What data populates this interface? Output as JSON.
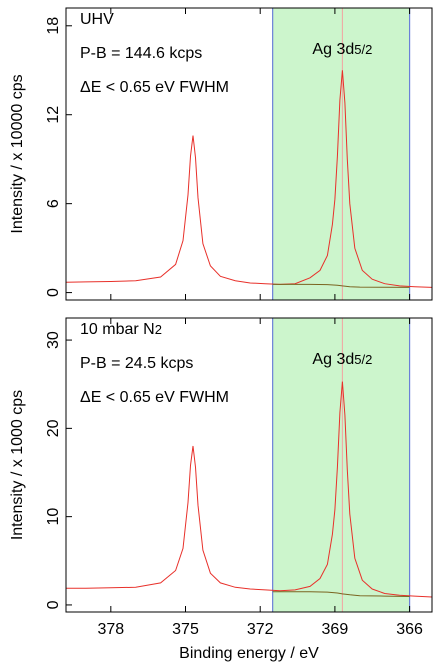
{
  "chart_data": [
    {
      "type": "line",
      "ylabel": "Intensity / x 10000 cps",
      "label_lines": [
        [
          "UHV"
        ],
        [
          "P-B = 144.6 kcps"
        ],
        [
          "ΔE < 0.65 eV FWHM"
        ]
      ],
      "peak_label": [
        "Ag 3d",
        "5/2"
      ],
      "peak_position": 368.7,
      "peak_color": "#f4a0a0",
      "region": [
        371.5,
        366.0
      ],
      "region_color": "#ccf5cc",
      "region_edge_color": "#6b7fd8",
      "xlim": [
        379.8,
        365.1
      ],
      "xticks": [
        378,
        375,
        372,
        369,
        366
      ],
      "show_xtick_labels": false,
      "ylim": [
        -0.5,
        19.2
      ],
      "yticks": [
        0,
        6,
        12,
        18
      ],
      "series": [
        {
          "color": "#e8302a",
          "x": [
            379.8,
            379,
            378,
            377,
            376,
            375.4,
            375.1,
            374.9,
            374.8,
            374.7,
            374.6,
            374.5,
            374.3,
            374.0,
            373.6,
            373,
            372.4,
            371.8,
            371.2,
            370.6,
            370.0,
            369.6,
            369.3,
            369.1,
            369.0,
            368.9,
            368.8,
            368.7,
            368.6,
            368.5,
            368.4,
            368.2,
            367.9,
            367.5,
            367.0,
            366.4,
            365.8,
            365.1
          ],
          "values": [
            0.7,
            0.72,
            0.75,
            0.8,
            1.05,
            1.9,
            3.5,
            6.6,
            9.2,
            10.6,
            9.1,
            6.4,
            3.3,
            1.8,
            1.1,
            0.8,
            0.65,
            0.6,
            0.55,
            0.6,
            1.0,
            1.5,
            2.5,
            4.6,
            6.3,
            9.2,
            13.0,
            15.0,
            12.8,
            9.0,
            6.0,
            3.0,
            1.5,
            0.9,
            0.6,
            0.45,
            0.4,
            0.35
          ]
        },
        {
          "color": "#7a6420",
          "x": [
            371.5,
            370,
            369.3,
            368.9,
            368.7,
            368.4,
            368,
            367,
            366.0
          ],
          "values": [
            0.55,
            0.55,
            0.54,
            0.5,
            0.45,
            0.4,
            0.37,
            0.36,
            0.35
          ]
        }
      ]
    },
    {
      "type": "line",
      "ylabel": "Intensity / x 1000 cps",
      "xlabel": "Binding energy / eV",
      "label_lines": [
        [
          "10 mbar N",
          "2"
        ],
        [
          "P-B = 24.5 kcps"
        ],
        [
          "ΔE < 0.65 eV FWHM"
        ]
      ],
      "peak_label": [
        "Ag 3d",
        "5/2"
      ],
      "peak_position": 368.7,
      "peak_color": "#f4a0a0",
      "region": [
        371.5,
        366.0
      ],
      "region_color": "#ccf5cc",
      "region_edge_color": "#6b7fd8",
      "xlim": [
        379.8,
        365.1
      ],
      "xticks": [
        378,
        375,
        372,
        369,
        366
      ],
      "show_xtick_labels": true,
      "ylim": [
        -0.8,
        32.5
      ],
      "yticks": [
        0,
        10,
        20,
        30
      ],
      "series": [
        {
          "color": "#e8302a",
          "x": [
            379.8,
            379,
            378,
            377,
            376,
            375.4,
            375.1,
            374.9,
            374.8,
            374.7,
            374.6,
            374.5,
            374.3,
            374.0,
            373.6,
            373,
            372.4,
            371.8,
            371.2,
            370.6,
            370.0,
            369.6,
            369.3,
            369.1,
            369.0,
            368.9,
            368.8,
            368.7,
            368.6,
            368.5,
            368.4,
            368.2,
            367.9,
            367.5,
            367.0,
            366.4,
            365.8,
            365.1
          ],
          "values": [
            1.9,
            1.9,
            1.95,
            2.0,
            2.5,
            3.9,
            6.4,
            11.6,
            15.8,
            18.0,
            15.6,
            11.3,
            6.2,
            3.6,
            2.5,
            2.0,
            1.8,
            1.7,
            1.6,
            1.7,
            2.1,
            3.0,
            4.6,
            8.0,
            10.8,
            15.6,
            21.8,
            25.3,
            21.5,
            15.3,
            10.3,
            5.3,
            2.8,
            1.8,
            1.3,
            1.1,
            1.0,
            0.9
          ]
        },
        {
          "color": "#7a6420",
          "x": [
            371.5,
            370,
            369.3,
            368.9,
            368.7,
            368.4,
            368,
            367,
            366.0
          ],
          "values": [
            1.5,
            1.5,
            1.45,
            1.35,
            1.25,
            1.15,
            1.05,
            1.0,
            0.95
          ]
        }
      ]
    }
  ]
}
